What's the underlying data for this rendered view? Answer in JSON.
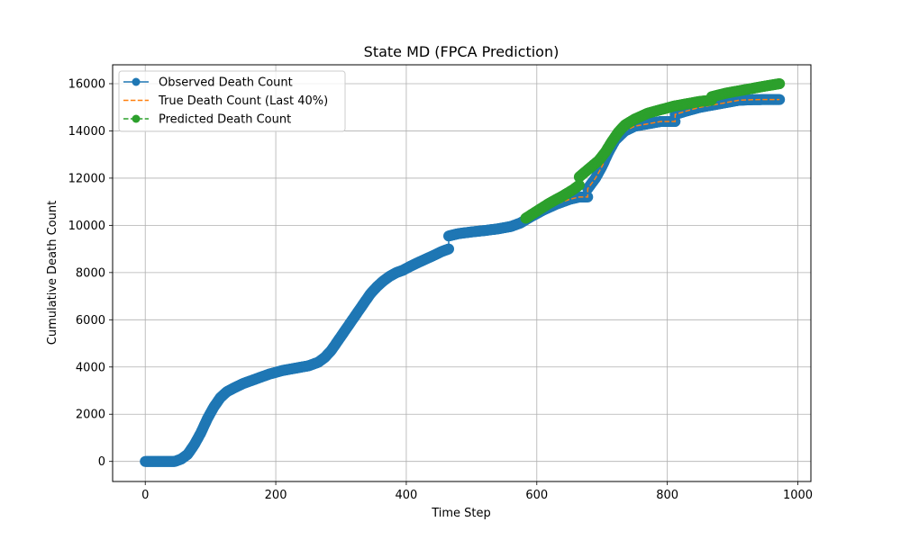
{
  "chart_data": {
    "type": "line",
    "title": "State MD (FPCA Prediction)",
    "xlabel": "Time Step",
    "ylabel": "Cumulative Death Count",
    "xlim": [
      -50,
      1020
    ],
    "ylim": [
      -850,
      16800
    ],
    "xticks": [
      0,
      200,
      400,
      600,
      800,
      1000
    ],
    "yticks": [
      0,
      2000,
      4000,
      6000,
      8000,
      10000,
      12000,
      14000,
      16000
    ],
    "grid": true,
    "legend_position": "top-left",
    "series": [
      {
        "name": "Observed Death Count",
        "color": "#1f77b4",
        "style": "solid-marker",
        "x": [
          0,
          45,
          55,
          65,
          75,
          85,
          95,
          105,
          115,
          125,
          135,
          150,
          170,
          190,
          210,
          230,
          250,
          265,
          275,
          285,
          295,
          305,
          315,
          325,
          335,
          345,
          355,
          365,
          375,
          385,
          395,
          405,
          420,
          440,
          455,
          465,
          465,
          480,
          500,
          520,
          540,
          560,
          575,
          590,
          610,
          630,
          650,
          665,
          678,
          678,
          690,
          700,
          710,
          720,
          735,
          750,
          770,
          790,
          812,
          812,
          830,
          850,
          870,
          890,
          910,
          930,
          950,
          972
        ],
        "y": [
          0,
          0,
          100,
          300,
          700,
          1200,
          1800,
          2300,
          2700,
          2950,
          3100,
          3300,
          3500,
          3700,
          3850,
          3950,
          4050,
          4200,
          4400,
          4700,
          5100,
          5500,
          5900,
          6300,
          6700,
          7100,
          7400,
          7650,
          7850,
          8000,
          8100,
          8250,
          8450,
          8700,
          8900,
          9000,
          9550,
          9650,
          9720,
          9780,
          9850,
          9950,
          10100,
          10350,
          10650,
          10900,
          11100,
          11200,
          11200,
          11550,
          12000,
          12500,
          13100,
          13600,
          14000,
          14200,
          14300,
          14400,
          14400,
          14700,
          14850,
          15000,
          15100,
          15200,
          15300,
          15320,
          15330,
          15330
        ]
      },
      {
        "name": "True Death Count (Last 40%)",
        "color": "#ff7f0e",
        "style": "dashed",
        "x": [
          583,
          590,
          610,
          630,
          650,
          665,
          678,
          678,
          690,
          700,
          710,
          720,
          735,
          750,
          770,
          790,
          812,
          812,
          830,
          850,
          870,
          890,
          910,
          930,
          950,
          972
        ],
        "y": [
          10300,
          10350,
          10650,
          10900,
          11100,
          11200,
          11200,
          11550,
          12000,
          12500,
          13100,
          13600,
          14000,
          14200,
          14300,
          14400,
          14400,
          14700,
          14850,
          15000,
          15100,
          15200,
          15300,
          15320,
          15330,
          15330
        ]
      },
      {
        "name": "Predicted Death Count",
        "color": "#2ca02c",
        "style": "dashed-marker",
        "x": [
          583,
          600,
          620,
          640,
          655,
          665,
          665,
          680,
          695,
          705,
          715,
          725,
          735,
          750,
          770,
          790,
          810,
          830,
          850,
          868,
          868,
          890,
          910,
          930,
          950,
          972
        ],
        "y": [
          10300,
          10600,
          10950,
          11250,
          11500,
          11700,
          12050,
          12400,
          12750,
          13100,
          13550,
          13950,
          14250,
          14500,
          14750,
          14900,
          15050,
          15150,
          15250,
          15300,
          15450,
          15600,
          15700,
          15800,
          15900,
          16000
        ]
      }
    ]
  }
}
